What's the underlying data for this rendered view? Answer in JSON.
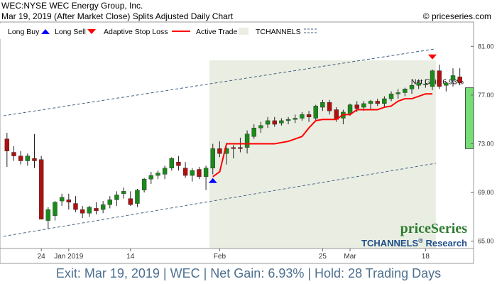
{
  "header": {
    "title": "WEC:NYSE WEC Energy Group, Inc.",
    "subtitle": "Mar 19, 2019 (After Market Close)  Splits Adjusted Daily Chart",
    "copyright": "© priceseries.com"
  },
  "legend": {
    "long_buy": "Long Buy",
    "long_sell": "Long Sell",
    "adaptive_stop": "Adaptive Stop Loss",
    "active_trade": "Active Trade",
    "tchannels": "TCHANNELS"
  },
  "logo": {
    "brand": "priceSeries",
    "product": "TCHANNELS",
    "reg": "®",
    "suffix": " Research"
  },
  "net_gain_label": "Net Gain 6.93%",
  "footer": "Exit: Mar 19, 2019 | WEC | Net Gain: 6.93% | Hold: 28 Trading Days",
  "colors": {
    "up": "#1a8a1a",
    "down": "#b01010",
    "stop": "#ff0000",
    "channel": "#3f5f7f",
    "active_bg": "#eaeee2",
    "gain_fill": "#77dd77",
    "buy_arrow": "#0000ff",
    "sell_arrow": "#ff0000",
    "footer_text": "#4d6f8f",
    "logo_green": "#2e7d32",
    "logo_blue": "#1f4e8c"
  },
  "chart_data": {
    "type": "candlestick",
    "ylim": [
      64.4,
      83.0
    ],
    "yticks": [
      65.0,
      69.0,
      73.0,
      77.0,
      81.0
    ],
    "ytick_labels": [
      "65.00",
      "69.00",
      "73.00",
      "77.00",
      "81.00"
    ],
    "xtick_labels": [
      {
        "label": "24",
        "at": 5
      },
      {
        "label": "Jan 2019",
        "at": 9
      },
      {
        "label": "14",
        "at": 18
      },
      {
        "label": "Feb",
        "at": 31
      },
      {
        "label": "25",
        "at": 46
      },
      {
        "label": "Mar",
        "at": 50
      },
      {
        "label": "18",
        "at": 61
      }
    ],
    "candles": [
      [
        73.4,
        73.9,
        71.1,
        72.4
      ],
      [
        72.3,
        72.8,
        71.6,
        72.0
      ],
      [
        72.0,
        72.4,
        71.3,
        71.6
      ],
      [
        71.6,
        72.2,
        71.2,
        72.0
      ],
      [
        71.8,
        73.8,
        71.0,
        71.6
      ],
      [
        71.7,
        72.0,
        66.8,
        66.8
      ],
      [
        66.7,
        67.8,
        66.0,
        67.6
      ],
      [
        67.1,
        68.3,
        66.7,
        68.2
      ],
      [
        68.3,
        68.9,
        67.9,
        68.6
      ],
      [
        68.4,
        68.9,
        67.6,
        68.2
      ],
      [
        68.1,
        68.7,
        67.4,
        67.6
      ],
      [
        67.6,
        67.9,
        66.9,
        67.3
      ],
      [
        67.3,
        67.9,
        67.0,
        67.8
      ],
      [
        67.7,
        68.2,
        67.2,
        67.5
      ],
      [
        67.6,
        68.3,
        67.3,
        68.0
      ],
      [
        68.0,
        68.7,
        67.7,
        68.4
      ],
      [
        68.4,
        69.1,
        67.9,
        68.8
      ],
      [
        68.9,
        69.4,
        68.5,
        69.1
      ],
      [
        68.5,
        69.1,
        67.9,
        68.0
      ],
      [
        68.1,
        69.3,
        67.8,
        69.2
      ],
      [
        69.2,
        70.2,
        69.0,
        70.1
      ],
      [
        70.1,
        70.7,
        69.7,
        70.4
      ],
      [
        70.4,
        70.8,
        70.1,
        70.6
      ],
      [
        70.5,
        71.2,
        70.1,
        71.0
      ],
      [
        71.0,
        71.9,
        70.8,
        71.8
      ],
      [
        71.5,
        72.0,
        70.8,
        71.2
      ],
      [
        71.0,
        71.5,
        70.2,
        70.4
      ],
      [
        70.4,
        71.0,
        69.9,
        70.8
      ],
      [
        70.9,
        71.1,
        70.1,
        70.3
      ],
      [
        70.3,
        71.2,
        69.2,
        71.0
      ],
      [
        71.0,
        73.0,
        70.5,
        72.6
      ],
      [
        72.6,
        73.2,
        71.9,
        72.2
      ],
      [
        72.2,
        72.7,
        71.3,
        72.6
      ],
      [
        72.7,
        72.9,
        71.8,
        72.6
      ],
      [
        72.7,
        73.5,
        72.3,
        72.6
      ],
      [
        72.7,
        74.1,
        72.2,
        73.8
      ],
      [
        73.6,
        74.6,
        73.4,
        74.3
      ],
      [
        74.3,
        74.8,
        73.9,
        74.5
      ],
      [
        74.6,
        75.2,
        74.3,
        74.9
      ],
      [
        74.9,
        75.2,
        74.4,
        74.6
      ],
      [
        74.7,
        75.1,
        74.5,
        74.9
      ],
      [
        74.9,
        75.2,
        74.6,
        75.0
      ],
      [
        75.0,
        75.4,
        74.7,
        75.1
      ],
      [
        75.1,
        75.6,
        74.9,
        75.4
      ],
      [
        75.4,
        75.7,
        74.8,
        75.2
      ],
      [
        75.1,
        76.2,
        74.9,
        76.1
      ],
      [
        76.0,
        76.6,
        75.7,
        76.4
      ],
      [
        76.4,
        76.6,
        75.4,
        75.7
      ],
      [
        75.8,
        76.0,
        74.8,
        75.0
      ],
      [
        75.1,
        75.8,
        74.6,
        75.6
      ],
      [
        75.5,
        76.3,
        75.3,
        76.2
      ],
      [
        76.2,
        76.5,
        75.6,
        75.9
      ],
      [
        76.0,
        76.5,
        75.7,
        76.3
      ],
      [
        76.3,
        76.6,
        75.8,
        76.5
      ],
      [
        76.5,
        76.7,
        76.1,
        76.3
      ],
      [
        76.3,
        76.9,
        76.0,
        76.7
      ],
      [
        76.7,
        77.3,
        76.5,
        77.1
      ],
      [
        77.1,
        77.5,
        76.7,
        77.2
      ],
      [
        77.2,
        77.6,
        76.9,
        77.5
      ],
      [
        77.5,
        77.9,
        77.1,
        77.8
      ],
      [
        77.8,
        78.3,
        77.5,
        78.0
      ],
      [
        77.9,
        78.3,
        77.6,
        77.9
      ],
      [
        77.7,
        79.1,
        77.4,
        79.0
      ],
      [
        79.0,
        79.5,
        77.5,
        77.7
      ],
      [
        77.8,
        78.1,
        77.3,
        78.0
      ],
      [
        78.2,
        79.2,
        77.7,
        78.6
      ],
      [
        78.5,
        79.2,
        77.8,
        78.0
      ]
    ],
    "stop_loss": [
      [
        30,
        70.3
      ],
      [
        31,
        70.7
      ],
      [
        32,
        73.0
      ],
      [
        33,
        73.0
      ],
      [
        35,
        73.0
      ],
      [
        37,
        73.0
      ],
      [
        39,
        73.0
      ],
      [
        41,
        73.2
      ],
      [
        43,
        73.6
      ],
      [
        44,
        74.3
      ],
      [
        45,
        74.9
      ],
      [
        46,
        75.0
      ],
      [
        48,
        75.0
      ],
      [
        49,
        75.4
      ],
      [
        50,
        75.4
      ],
      [
        51,
        75.8
      ],
      [
        52,
        75.8
      ],
      [
        54,
        75.8
      ],
      [
        55,
        76.0
      ],
      [
        56,
        76.1
      ],
      [
        57,
        76.5
      ],
      [
        58,
        76.7
      ],
      [
        59,
        76.7
      ],
      [
        61,
        77.1
      ],
      [
        62,
        77.1
      ]
    ],
    "channel_upper": [
      [
        -0.5,
        75.3
      ],
      [
        62.5,
        80.8
      ]
    ],
    "channel_lower": [
      [
        -0.5,
        65.4
      ],
      [
        62.5,
        71.4
      ]
    ],
    "active_trade_range": [
      30,
      62
    ],
    "buy_signal": {
      "index": 30,
      "price": 70.3
    },
    "sell_signal": {
      "index": 62,
      "price": 80.1
    },
    "net_gain": {
      "from": 72.6,
      "to": 77.6
    }
  }
}
